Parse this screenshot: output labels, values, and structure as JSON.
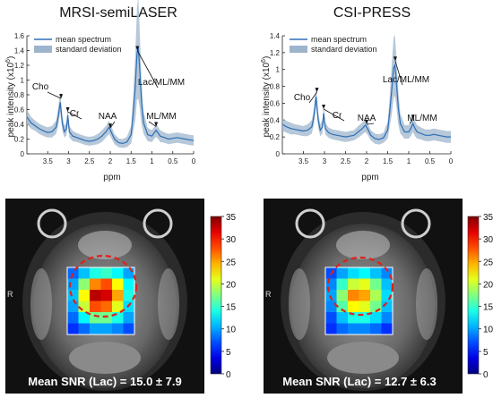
{
  "chart_data": [
    {
      "type": "line",
      "title": "MRSI-semiLASER",
      "xlabel": "ppm",
      "ylabel": "peak intensity (x10",
      "ylabel_sup": "6",
      "ylabel_end": ")",
      "x_reversed": true,
      "xlim": [
        4.0,
        0.0
      ],
      "ylim": [
        0.0,
        1.6
      ],
      "x_ticks": [
        "3.5",
        "3",
        "2.5",
        "2",
        "1.5",
        "1",
        "0.5",
        "0"
      ],
      "y_ticks": [
        "0",
        "0.2",
        "0.4",
        "0.6",
        "0.8",
        "1",
        "1.2",
        "1.4",
        "1.6"
      ],
      "legend": [
        "mean spectrum",
        "standard deviation"
      ],
      "legend_position": "top-left",
      "colors": {
        "mean": "#2e6fb6",
        "std": "#9db5cc"
      },
      "annotations": [
        {
          "text": "Cho",
          "x": 3.2
        },
        {
          "text": "Cr",
          "x": 3.0
        },
        {
          "text": "NAA",
          "x": 2.0
        },
        {
          "text": "Lac/ML/MM",
          "x": 1.3
        },
        {
          "text": "ML/MM",
          "x": 0.9
        }
      ],
      "series": [
        {
          "name": "mean spectrum",
          "x": [
            4.0,
            3.9,
            3.8,
            3.7,
            3.6,
            3.5,
            3.4,
            3.3,
            3.25,
            3.2,
            3.15,
            3.1,
            3.05,
            3.02,
            2.98,
            2.9,
            2.8,
            2.7,
            2.6,
            2.5,
            2.4,
            2.3,
            2.2,
            2.1,
            2.03,
            1.98,
            1.9,
            1.8,
            1.7,
            1.6,
            1.5,
            1.45,
            1.4,
            1.36,
            1.33,
            1.3,
            1.25,
            1.2,
            1.1,
            1.0,
            0.95,
            0.9,
            0.85,
            0.8,
            0.7,
            0.6,
            0.5,
            0.4,
            0.3,
            0.2,
            0.1,
            0.0
          ],
          "y": [
            0.5,
            0.42,
            0.38,
            0.34,
            0.31,
            0.29,
            0.3,
            0.36,
            0.5,
            0.7,
            0.42,
            0.3,
            0.34,
            0.52,
            0.3,
            0.24,
            0.22,
            0.2,
            0.18,
            0.17,
            0.18,
            0.2,
            0.24,
            0.3,
            0.36,
            0.3,
            0.2,
            0.15,
            0.14,
            0.16,
            0.26,
            0.55,
            0.9,
            1.35,
            1.45,
            1.2,
            0.7,
            0.42,
            0.26,
            0.24,
            0.28,
            0.32,
            0.28,
            0.24,
            0.22,
            0.2,
            0.21,
            0.22,
            0.21,
            0.2,
            0.19,
            0.18
          ]
        },
        {
          "name": "standard deviation",
          "x": [
            4.0,
            3.9,
            3.8,
            3.7,
            3.6,
            3.5,
            3.4,
            3.3,
            3.25,
            3.2,
            3.15,
            3.1,
            3.05,
            3.02,
            2.98,
            2.9,
            2.8,
            2.7,
            2.6,
            2.5,
            2.4,
            2.3,
            2.2,
            2.1,
            2.03,
            1.98,
            1.9,
            1.8,
            1.7,
            1.6,
            1.5,
            1.45,
            1.4,
            1.36,
            1.33,
            1.3,
            1.25,
            1.2,
            1.1,
            1.0,
            0.95,
            0.9,
            0.85,
            0.8,
            0.7,
            0.6,
            0.5,
            0.4,
            0.3,
            0.2,
            0.1,
            0.0
          ],
          "y": [
            0.1,
            0.08,
            0.07,
            0.07,
            0.07,
            0.07,
            0.08,
            0.09,
            0.12,
            0.14,
            0.1,
            0.08,
            0.09,
            0.12,
            0.08,
            0.07,
            0.06,
            0.06,
            0.06,
            0.06,
            0.06,
            0.07,
            0.08,
            0.08,
            0.09,
            0.08,
            0.07,
            0.06,
            0.06,
            0.07,
            0.12,
            0.25,
            0.45,
            0.62,
            0.7,
            0.55,
            0.3,
            0.15,
            0.09,
            0.08,
            0.08,
            0.09,
            0.08,
            0.08,
            0.07,
            0.07,
            0.07,
            0.07,
            0.07,
            0.07,
            0.07,
            0.07
          ]
        }
      ]
    },
    {
      "type": "line",
      "title": "CSI-PRESS",
      "xlabel": "ppm",
      "ylabel": "peak intensity (x10",
      "ylabel_sup": "6",
      "ylabel_end": ")",
      "x_reversed": true,
      "xlim": [
        4.0,
        0.0
      ],
      "ylim": [
        0.0,
        1.4
      ],
      "x_ticks": [
        "3.5",
        "3",
        "2.5",
        "2",
        "1.5",
        "1",
        "0.5",
        "0"
      ],
      "y_ticks": [
        "0",
        "0.2",
        "0.4",
        "0.6",
        "0.8",
        "1",
        "1.2",
        "1.4"
      ],
      "legend": [
        "mean spectrum",
        "standard deviation"
      ],
      "legend_position": "top-left",
      "colors": {
        "mean": "#2e6fb6",
        "std": "#9db5cc"
      },
      "annotations": [
        {
          "text": "Cho",
          "x": 3.2
        },
        {
          "text": "Cr",
          "x": 3.0
        },
        {
          "text": "NAA",
          "x": 2.0
        },
        {
          "text": "Lac/ML/MM",
          "x": 1.3
        },
        {
          "text": "ML/MM",
          "x": 0.9
        }
      ],
      "series": [
        {
          "name": "mean spectrum",
          "x": [
            4.0,
            3.9,
            3.8,
            3.7,
            3.6,
            3.5,
            3.4,
            3.3,
            3.25,
            3.2,
            3.15,
            3.1,
            3.05,
            3.02,
            2.98,
            2.9,
            2.8,
            2.7,
            2.6,
            2.5,
            2.4,
            2.3,
            2.2,
            2.1,
            2.03,
            1.98,
            1.9,
            1.8,
            1.7,
            1.6,
            1.5,
            1.45,
            1.4,
            1.36,
            1.33,
            1.3,
            1.25,
            1.2,
            1.1,
            1.0,
            0.95,
            0.9,
            0.85,
            0.8,
            0.7,
            0.6,
            0.5,
            0.4,
            0.3,
            0.2,
            0.1,
            0.0
          ],
          "y": [
            0.35,
            0.32,
            0.3,
            0.29,
            0.28,
            0.27,
            0.28,
            0.32,
            0.45,
            0.68,
            0.4,
            0.28,
            0.32,
            0.48,
            0.3,
            0.25,
            0.23,
            0.22,
            0.21,
            0.2,
            0.21,
            0.22,
            0.26,
            0.3,
            0.34,
            0.3,
            0.22,
            0.18,
            0.17,
            0.19,
            0.28,
            0.5,
            0.78,
            1.02,
            1.05,
            0.9,
            0.55,
            0.36,
            0.26,
            0.26,
            0.3,
            0.36,
            0.3,
            0.26,
            0.24,
            0.22,
            0.22,
            0.23,
            0.22,
            0.21,
            0.2,
            0.2
          ]
        },
        {
          "name": "standard deviation",
          "x": [
            4.0,
            3.9,
            3.8,
            3.7,
            3.6,
            3.5,
            3.4,
            3.3,
            3.25,
            3.2,
            3.15,
            3.1,
            3.05,
            3.02,
            2.98,
            2.9,
            2.8,
            2.7,
            2.6,
            2.5,
            2.4,
            2.3,
            2.2,
            2.1,
            2.03,
            1.98,
            1.9,
            1.8,
            1.7,
            1.6,
            1.5,
            1.45,
            1.4,
            1.36,
            1.33,
            1.3,
            1.25,
            1.2,
            1.1,
            1.0,
            0.95,
            0.9,
            0.85,
            0.8,
            0.7,
            0.6,
            0.5,
            0.4,
            0.3,
            0.2,
            0.1,
            0.0
          ],
          "y": [
            0.08,
            0.07,
            0.07,
            0.06,
            0.06,
            0.06,
            0.07,
            0.08,
            0.1,
            0.12,
            0.09,
            0.07,
            0.08,
            0.1,
            0.07,
            0.06,
            0.06,
            0.06,
            0.06,
            0.06,
            0.06,
            0.06,
            0.07,
            0.07,
            0.08,
            0.07,
            0.06,
            0.06,
            0.06,
            0.06,
            0.1,
            0.18,
            0.3,
            0.36,
            0.36,
            0.3,
            0.2,
            0.12,
            0.08,
            0.08,
            0.09,
            0.1,
            0.09,
            0.08,
            0.07,
            0.07,
            0.07,
            0.07,
            0.07,
            0.07,
            0.07,
            0.07
          ]
        }
      ]
    },
    {
      "type": "heatmap",
      "grid_size": [
        6,
        6
      ],
      "values": [
        [
          8,
          11,
          14,
          15,
          13,
          10
        ],
        [
          10,
          18,
          26,
          28,
          22,
          13
        ],
        [
          11,
          22,
          33,
          32,
          25,
          14
        ],
        [
          10,
          20,
          28,
          27,
          21,
          12
        ],
        [
          8,
          13,
          17,
          17,
          14,
          10
        ],
        [
          6,
          8,
          10,
          10,
          9,
          7
        ]
      ],
      "colorbar_range": [
        0,
        35
      ],
      "colorbar_ticks": [
        "35",
        "30",
        "25",
        "20",
        "15",
        "10",
        "5",
        "0"
      ],
      "colorscale": "jet",
      "caption": "Mean SNR (Lac) = 15.0 ± 7.9",
      "side_label": "R"
    },
    {
      "type": "heatmap",
      "grid_size": [
        6,
        6
      ],
      "values": [
        [
          7,
          10,
          12,
          13,
          11,
          9
        ],
        [
          9,
          15,
          20,
          21,
          17,
          11
        ],
        [
          10,
          18,
          26,
          25,
          19,
          12
        ],
        [
          9,
          16,
          22,
          21,
          17,
          11
        ],
        [
          7,
          11,
          14,
          14,
          12,
          9
        ],
        [
          6,
          8,
          9,
          9,
          8,
          6
        ]
      ],
      "colorbar_range": [
        0,
        35
      ],
      "colorbar_ticks": [
        "35",
        "30",
        "25",
        "20",
        "15",
        "10",
        "5",
        "0"
      ],
      "colorscale": "jet",
      "caption": "Mean SNR (Lac) = 12.7 ± 6.3",
      "side_label": "R"
    }
  ]
}
